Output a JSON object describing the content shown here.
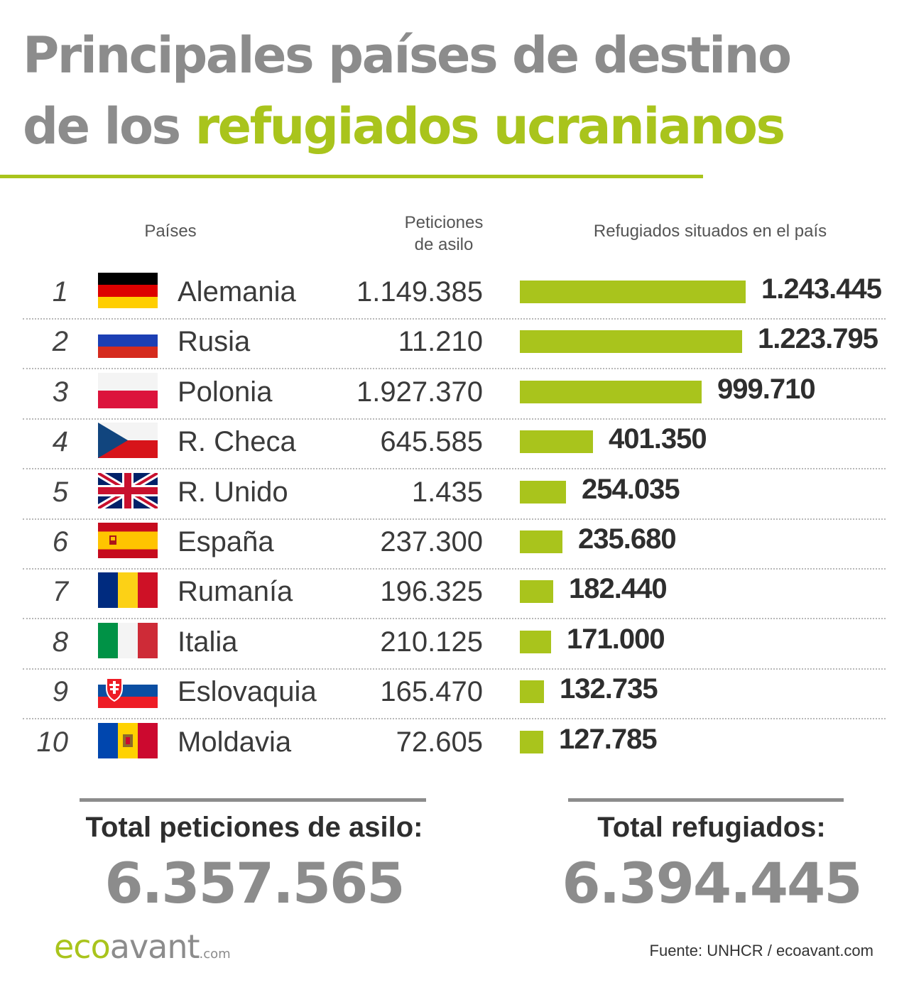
{
  "title": {
    "line1": "Principales países de destino",
    "line2_prefix": "de los ",
    "line2_highlight": "refugiados ucranianos"
  },
  "headers": {
    "countries": "Países",
    "asylum_line1": "Peticiones",
    "asylum_line2": "de asilo",
    "refugees": "Refugiados situados en el país"
  },
  "colors": {
    "accent": "#a9c41c",
    "gray": "#8c8c8c"
  },
  "chart_data": {
    "type": "bar",
    "categories": [
      "Alemania",
      "Rusia",
      "Polonia",
      "R. Checa",
      "R. Unido",
      "España",
      "Rumanía",
      "Italia",
      "Eslovaquia",
      "Moldavia"
    ],
    "ranks": [
      "1",
      "2",
      "3",
      "4",
      "5",
      "6",
      "7",
      "8",
      "9",
      "10"
    ],
    "flags": [
      "germany-flag-icon",
      "russia-flag-icon",
      "poland-flag-icon",
      "czech-flag-icon",
      "uk-flag-icon",
      "spain-flag-icon",
      "romania-flag-icon",
      "italy-flag-icon",
      "slovakia-flag-icon",
      "moldova-flag-icon"
    ],
    "asylum_labels": [
      "1.149.385",
      "11.210",
      "1.927.370",
      "645.585",
      "1.435",
      "237.300",
      "196.325",
      "210.125",
      "165.470",
      "72.605"
    ],
    "values": [
      1243445,
      1223795,
      999710,
      401350,
      254035,
      235680,
      182440,
      171000,
      132735,
      127785
    ],
    "value_labels": [
      "1.243.445",
      "1.223.795",
      "999.710",
      "401.350",
      "254.035",
      "235.680",
      "182.440",
      "171.000",
      "132.735",
      "127.785"
    ]
  },
  "totals": {
    "asylum_label": "Total peticiones de asilo:",
    "asylum_value": "6.357.565",
    "refugees_label": "Total refugiados:",
    "refugees_value": "6.394.445"
  },
  "footer": {
    "logo_eco": "eco",
    "logo_avant": "avant",
    "logo_com": ".com",
    "source_label": "Fuente:",
    "source_text": "UNHCR / ecoavant.com"
  }
}
